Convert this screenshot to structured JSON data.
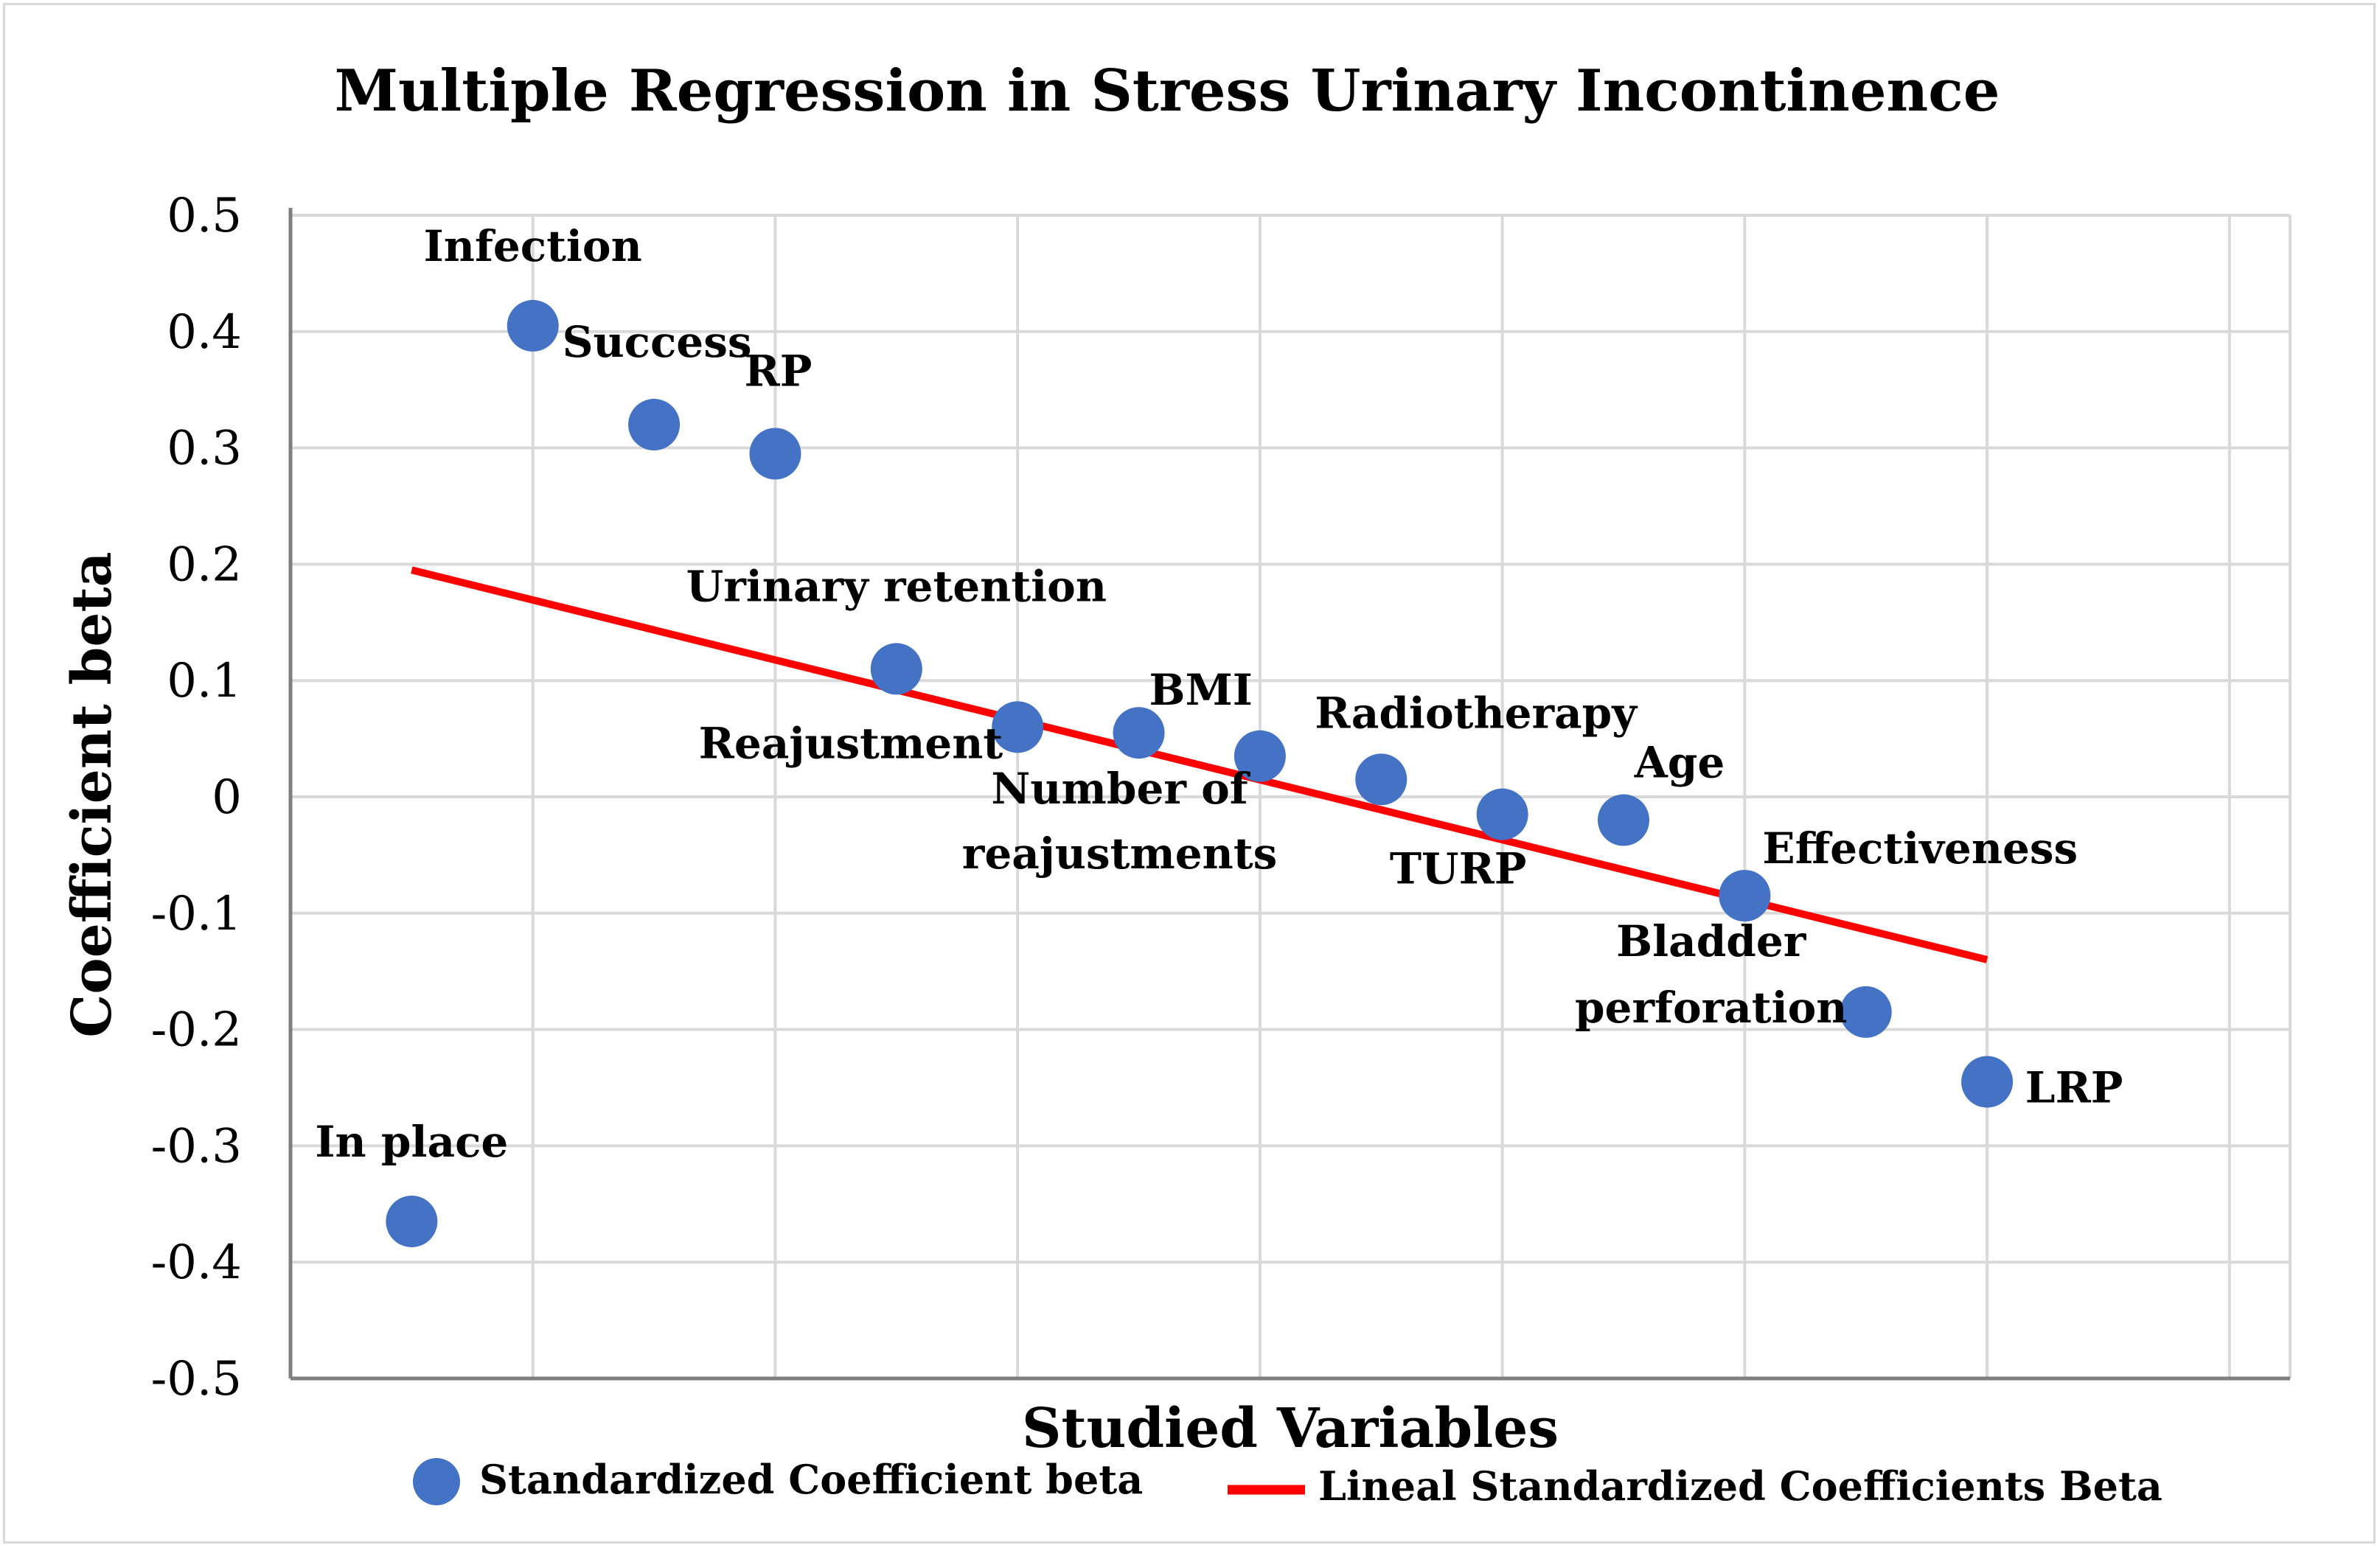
{
  "chart_data": {
    "type": "scatter",
    "title": "Multiple Regression in Stress Urinary Incontinence",
    "xlabel": "Studied Variables",
    "ylabel": "Coefficient beta",
    "ylim": [
      -0.5,
      0.5
    ],
    "y_ticks": [
      "0.5",
      "0.4",
      "0.3",
      "0.2",
      "0.1",
      "0",
      "-0.1",
      "-0.2",
      "-0.3",
      "-0.4",
      "-0.5"
    ],
    "grid": true,
    "legend_position": "bottom",
    "series": [
      {
        "name": "Standardized Coefficient beta",
        "kind": "scatter",
        "color": "#4472c4",
        "points": [
          {
            "x": 1,
            "y": -0.365,
            "label": "In place"
          },
          {
            "x": 2,
            "y": 0.405,
            "label": "Infection"
          },
          {
            "x": 3,
            "y": 0.32,
            "label": "Success"
          },
          {
            "x": 4,
            "y": 0.295,
            "label": "RP"
          },
          {
            "x": 5,
            "y": 0.11,
            "label": "Urinary retention"
          },
          {
            "x": 6,
            "y": 0.06,
            "label": "Reajustment"
          },
          {
            "x": 7,
            "y": 0.055,
            "label": "Number of reajustments"
          },
          {
            "x": 8,
            "y": 0.035,
            "label": "BMI"
          },
          {
            "x": 9,
            "y": 0.015,
            "label": "Radiotherapy"
          },
          {
            "x": 10,
            "y": -0.015,
            "label": "TURP"
          },
          {
            "x": 11,
            "y": -0.02,
            "label": "Age"
          },
          {
            "x": 12,
            "y": -0.085,
            "label": "Effectiveness"
          },
          {
            "x": 13,
            "y": -0.185,
            "label": "Bladder perforation"
          },
          {
            "x": 14,
            "y": -0.245,
            "label": "LRP"
          }
        ]
      },
      {
        "name": "Lineal Standardized Coefficients Beta",
        "kind": "line",
        "color": "#ff0000",
        "x": [
          1,
          14
        ],
        "values": [
          0.195,
          -0.14
        ]
      }
    ]
  }
}
